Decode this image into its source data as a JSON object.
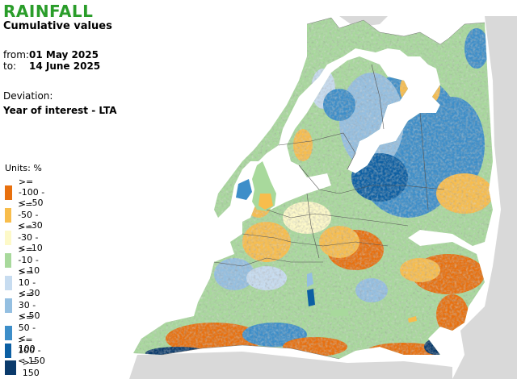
{
  "header": {
    "title": "RAINFALL",
    "subtitle": "Cumulative values",
    "from_label": "from:",
    "from_date": "01 May 2025",
    "to_label": "to:",
    "to_date": "14 June 2025",
    "deviation_label": "Deviation:",
    "deviation_value": "Year of interest - LTA"
  },
  "legend": {
    "units": "Units: %",
    "items": [
      {
        "label": ">= -100 - < -50",
        "color": "#e8700e"
      },
      {
        "label": ">= -50 - < -30",
        "color": "#f8bd4c"
      },
      {
        "label": ">= -30 - < -10",
        "color": "#fdf9c8"
      },
      {
        "label": ">= -10 - < 10",
        "color": "#a8d99c"
      },
      {
        "label": ">= 10 - < 30",
        "color": "#c7dcf0"
      },
      {
        "label": ">= 30 - < 50",
        "color": "#94bfe1"
      },
      {
        "label": ">= 50 - < 100",
        "color": "#3d8ec9"
      },
      {
        "label": ">= 100 - < 150",
        "color": "#0c5fa3"
      },
      {
        "label": ">= 150",
        "color": "#0a3a6b"
      }
    ]
  },
  "map": {
    "background_land": "#d9d9d9",
    "sea": "#ffffff",
    "border": "#555555"
  }
}
